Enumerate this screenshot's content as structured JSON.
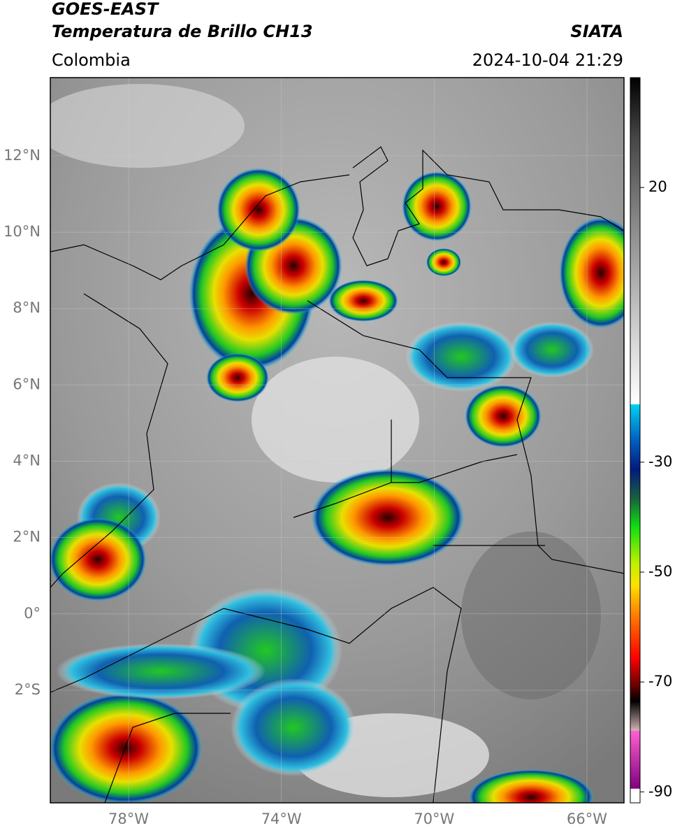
{
  "header": {
    "title_line1": "GOES-EAST",
    "title_line2": "Temperatura de Brillo CH13",
    "source": "SIATA",
    "region": "Colombia",
    "timestamp": "2024-10-04 21:29"
  },
  "map": {
    "lonlim": [
      -80.05,
      -65.03
    ],
    "latlim": [
      -4.95,
      14.05
    ],
    "lat_ticks": [
      {
        "value": 12,
        "label": "12°N"
      },
      {
        "value": 10,
        "label": "10°N"
      },
      {
        "value": 8,
        "label": "8°N"
      },
      {
        "value": 6,
        "label": "6°N"
      },
      {
        "value": 4,
        "label": "4°N"
      },
      {
        "value": 2,
        "label": "2°N"
      },
      {
        "value": 0,
        "label": "0°"
      },
      {
        "value": -2,
        "label": "2°S"
      }
    ],
    "lon_ticks": [
      {
        "value": -78,
        "label": "78°W"
      },
      {
        "value": -74,
        "label": "74°W"
      },
      {
        "value": -70,
        "label": "70°W"
      },
      {
        "value": -66,
        "label": "66°W"
      }
    ],
    "grid": true
  },
  "colorbar": {
    "lim": [
      -92,
      40
    ],
    "ticks": [
      20,
      -30,
      -50,
      -70,
      -90
    ]
  }
}
